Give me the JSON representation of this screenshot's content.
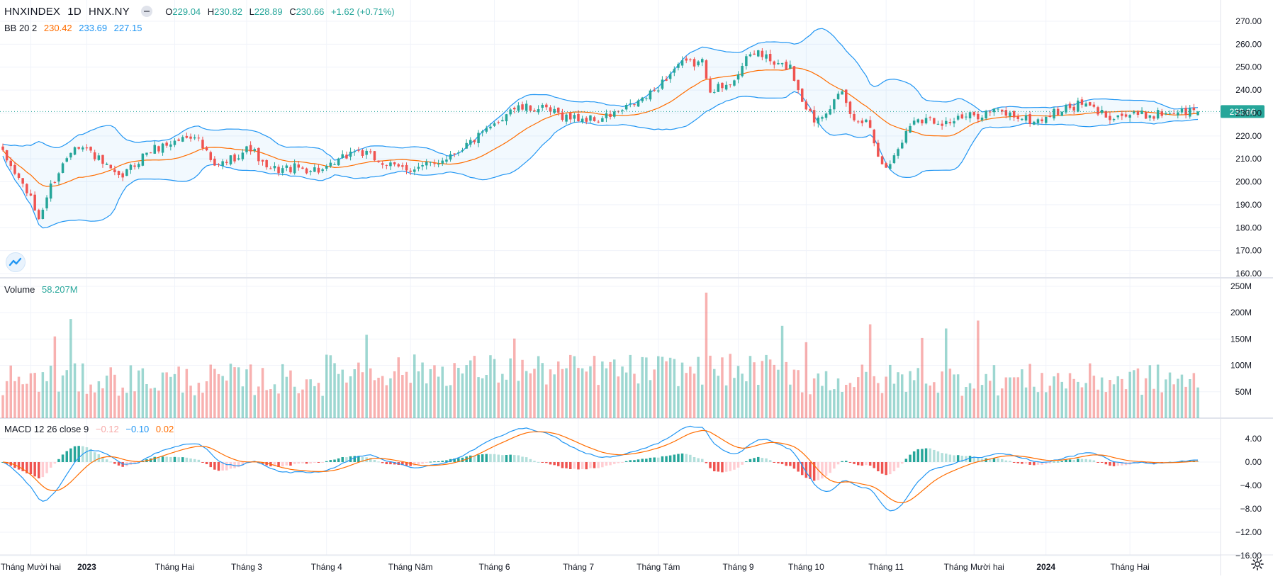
{
  "legend": {
    "symbol": "HNXINDEX",
    "interval": "1D",
    "exchange": "HNX.NY",
    "ohlc": {
      "o_label": "O",
      "o": "229.04",
      "h_label": "H",
      "h": "230.82",
      "l_label": "L",
      "l": "228.89",
      "c_label": "C",
      "c": "230.66",
      "change": "+1.62 (+0.71%)"
    },
    "bb": {
      "label": "BB 20 2",
      "basis": "230.42",
      "upper": "233.69",
      "lower": "227.15"
    },
    "volume": {
      "label": "Volume",
      "value": "58.207M"
    },
    "macd": {
      "label": "MACD 12 26 close 9",
      "hist": "−0.12",
      "macd": "−0.10",
      "signal": "0.02"
    }
  },
  "colors": {
    "up": "#26a69a",
    "down": "#ef5350",
    "bb_band": "#2196f3",
    "bb_basis": "#ff6d00",
    "macd_line": "#2196f3",
    "signal_line": "#ff6d00",
    "last_price_bg": "#26a69a"
  },
  "price_badge": "230.66",
  "chart_data": [
    {
      "type": "candlestick",
      "title": "HNXINDEX",
      "yaxis_ticks": [
        "270.00",
        "260.00",
        "250.00",
        "240.00",
        "230.00",
        "220.00",
        "210.00",
        "200.00",
        "190.00",
        "180.00",
        "170.00",
        "160.00"
      ],
      "ylim": [
        158,
        273
      ],
      "x_ticks": [
        "Tháng Mười hai",
        "2023",
        "Tháng Hai",
        "Tháng 3",
        "Tháng 4",
        "Tháng Năm",
        "Tháng 6",
        "Tháng 7",
        "Tháng Tám",
        "Tháng 9",
        "Tháng 10",
        "Tháng 11",
        "Tháng Mười hai",
        "2024",
        "Tháng Hai"
      ],
      "x_tick_positions": [
        7,
        21,
        43,
        61,
        81,
        102,
        123,
        144,
        164,
        184,
        201,
        221,
        243,
        261,
        282
      ],
      "bars": 300,
      "close_anchors": [
        [
          0,
          212
        ],
        [
          6,
          196
        ],
        [
          9,
          184
        ],
        [
          12,
          198
        ],
        [
          18,
          217
        ],
        [
          22,
          213
        ],
        [
          29,
          201
        ],
        [
          32,
          206
        ],
        [
          36,
          213
        ],
        [
          48,
          221
        ],
        [
          53,
          206
        ],
        [
          62,
          215
        ],
        [
          66,
          205
        ],
        [
          73,
          206
        ],
        [
          81,
          205
        ],
        [
          88,
          214
        ],
        [
          93,
          210
        ],
        [
          98,
          206
        ],
        [
          104,
          206
        ],
        [
          108,
          208
        ],
        [
          114,
          214
        ],
        [
          122,
          223
        ],
        [
          127,
          232
        ],
        [
          134,
          232
        ],
        [
          142,
          228
        ],
        [
          149,
          227
        ],
        [
          155,
          231
        ],
        [
          162,
          238
        ],
        [
          169,
          251
        ],
        [
          175,
          252
        ],
        [
          177,
          241
        ],
        [
          181,
          241
        ],
        [
          187,
          255
        ],
        [
          189,
          257
        ],
        [
          193,
          251
        ],
        [
          197,
          250
        ],
        [
          200,
          236
        ],
        [
          203,
          227
        ],
        [
          210,
          238
        ],
        [
          213,
          226
        ],
        [
          216,
          228
        ],
        [
          219,
          213
        ],
        [
          221,
          205
        ],
        [
          225,
          218
        ],
        [
          228,
          228
        ],
        [
          236,
          226
        ],
        [
          241,
          228
        ],
        [
          248,
          231
        ],
        [
          255,
          228
        ],
        [
          258,
          226
        ],
        [
          263,
          230
        ],
        [
          270,
          234
        ],
        [
          276,
          229
        ],
        [
          286,
          229
        ],
        [
          293,
          230.66
        ]
      ],
      "open_last": 229.04,
      "high_last": 230.82,
      "low_last": 228.89,
      "close_last": 230.66,
      "bollinger": {
        "period": 20,
        "mult": 2,
        "last_basis": 230.42,
        "last_upper": 233.69,
        "last_lower": 227.15
      }
    },
    {
      "type": "bar",
      "title": "Volume",
      "yaxis_ticks": [
        "250M",
        "200M",
        "150M",
        "100M",
        "50M"
      ],
      "ylim": [
        0,
        250
      ],
      "unit": "M",
      "last_value": 58.207,
      "peaks": [
        [
          17,
          188
        ],
        [
          13,
          155
        ],
        [
          91,
          158
        ],
        [
          176,
          238
        ],
        [
          128,
          151
        ],
        [
          195,
          175
        ],
        [
          217,
          178
        ],
        [
          244,
          185
        ],
        [
          236,
          170
        ],
        [
          201,
          144
        ],
        [
          230,
          152
        ]
      ]
    },
    {
      "type": "line",
      "title": "MACD 12 26 close 9",
      "yaxis_ticks": [
        "4.00",
        "0.00",
        "−4.00",
        "−8.00",
        "−12.00",
        "−16.00"
      ],
      "ylim": [
        -16.5,
        6.2
      ],
      "series": [
        {
          "name": "MACD",
          "color": "#2196f3"
        },
        {
          "name": "Signal",
          "color": "#ff6d00"
        },
        {
          "name": "Histogram"
        }
      ],
      "last_values": {
        "macd": -0.1,
        "signal": 0.02,
        "hist": -0.12
      }
    }
  ]
}
